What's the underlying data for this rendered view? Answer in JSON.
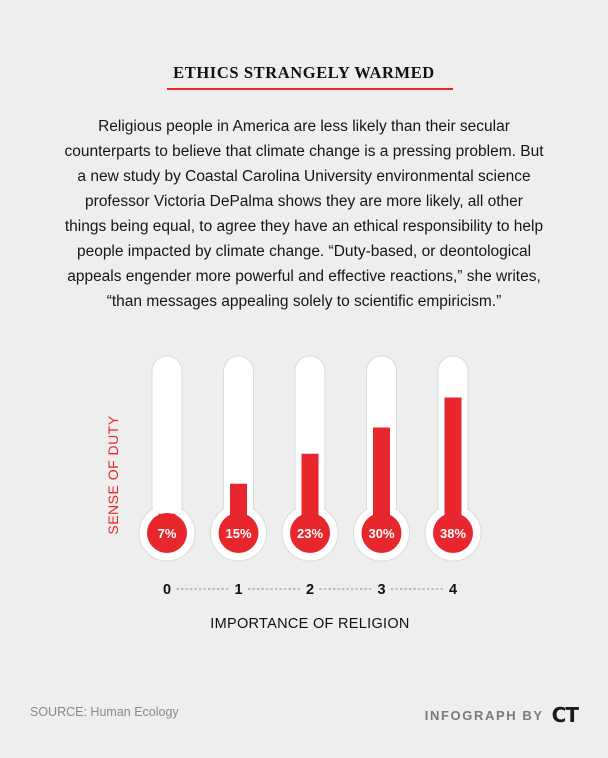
{
  "header": {
    "title": "ETHICS STRANGELY WARMED",
    "body": "Religious people in America are less likely than their secular counterparts to believe that climate change is a pressing problem. But a new study by Coastal Carolina University environmental science professor Victoria DePalma shows they are more likely, all other things being equal, to agree they have an ethical responsibility to help people impacted by climate change. “Duty-based, or deontological appeals engender more powerful and effective reactions,” she writes, “than messages appealing solely to scientific empiricism.”"
  },
  "chart_data": {
    "type": "bar",
    "style": "thermometer",
    "categories": [
      "0",
      "1",
      "2",
      "3",
      "4"
    ],
    "values": [
      7,
      15,
      23,
      30,
      38
    ],
    "value_labels": [
      "7%",
      "15%",
      "23%",
      "30%",
      "38%"
    ],
    "xlabel": "IMPORTANCE OF RELIGION",
    "ylabel": "SENSE OF DUTY",
    "ylim": [
      0,
      50
    ],
    "grid": false,
    "legend": "none",
    "colors": {
      "fill": "#e8262e",
      "tube": "#ffffff",
      "background": "#eeeeee"
    }
  },
  "footer": {
    "source": "SOURCE: Human Ecology",
    "credit": "INFOGRAPH BY",
    "logo": "CT"
  }
}
